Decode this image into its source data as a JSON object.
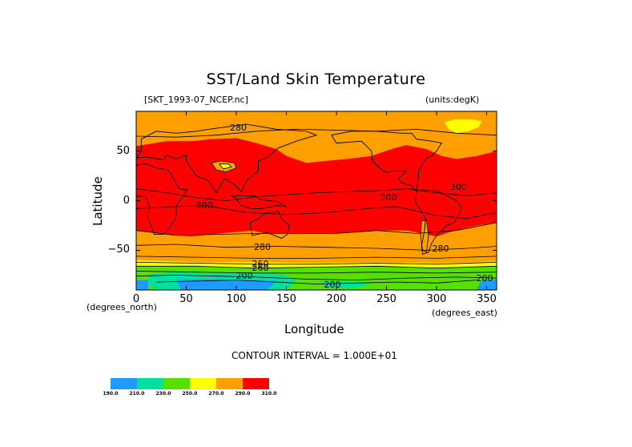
{
  "chart_data": {
    "type": "heatmap",
    "title": "SST/Land Skin Temperature",
    "file_label": "[SKT_1993-07_NCEP.nc]",
    "units_label": "(units:degK)",
    "xlabel": "Longitude",
    "ylabel": "Latitude",
    "x_units": "(degrees_east)",
    "y_units": "(degrees_north)",
    "xlim": [
      0,
      360
    ],
    "ylim": [
      -90,
      90
    ],
    "xticks": [
      0,
      50,
      100,
      150,
      200,
      250,
      300,
      350
    ],
    "yticks": [
      -50,
      0,
      50
    ],
    "x_tick_labels": [
      "0",
      "50",
      "100",
      "150",
      "200",
      "250",
      "300",
      "350"
    ],
    "y_tick_labels": [
      "−50",
      "0",
      "50"
    ],
    "contour_interval_text": "CONTOUR INTERVAL = 1.000E+01",
    "contour_labels": [
      {
        "text": "280",
        "lon": 102,
        "lat": 73
      },
      {
        "text": "300",
        "lon": 68,
        "lat": -5
      },
      {
        "text": "300",
        "lon": 252,
        "lat": 3
      },
      {
        "text": "300",
        "lon": 322,
        "lat": 13
      },
      {
        "text": "280",
        "lon": 126,
        "lat": -47
      },
      {
        "text": "280",
        "lon": 304,
        "lat": -49
      },
      {
        "text": "260",
        "lon": 124,
        "lat": -64
      },
      {
        "text": "260",
        "lon": 124,
        "lat": -68
      },
      {
        "text": "200",
        "lon": 108,
        "lat": -76
      },
      {
        "text": "200",
        "lon": 196,
        "lat": -85
      },
      {
        "text": "200",
        "lon": 348,
        "lat": -79
      }
    ],
    "color_levels": [
      {
        "range": [
          190,
          210
        ],
        "color": "#1e9bff"
      },
      {
        "range": [
          210,
          230
        ],
        "color": "#00e0a0"
      },
      {
        "range": [
          230,
          250
        ],
        "color": "#55e000"
      },
      {
        "range": [
          250,
          270
        ],
        "color": "#ffff00"
      },
      {
        "range": [
          270,
          290
        ],
        "color": "#ffa000"
      },
      {
        "range": [
          290,
          310
        ],
        "color": "#ff0000"
      }
    ],
    "colorbar_labels": [
      "190.0",
      "210.0",
      "230.0",
      "250.0",
      "270.0",
      "290.0",
      "310.0"
    ]
  }
}
